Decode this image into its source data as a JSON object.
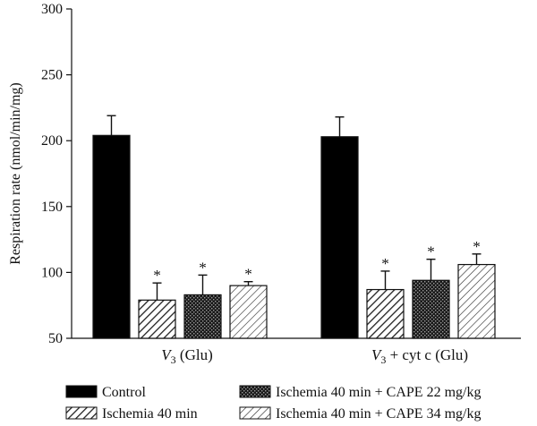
{
  "chart_data": {
    "type": "bar",
    "title": "",
    "xlabel": "",
    "ylabel": "Respiration rate (nmol/min/mg)",
    "ylim": [
      50,
      300
    ],
    "yticks": [
      "50",
      "100",
      "150",
      "200",
      "250",
      "300"
    ],
    "grid": false,
    "legend_position": "bottom",
    "groups": [
      {
        "label_main": "V",
        "label_sub": "3",
        "label_rest": " (Glu)"
      },
      {
        "label_main": "V",
        "label_sub": "3",
        "label_rest": " + cyt c (Glu)"
      }
    ],
    "significance_marker": "*",
    "series": [
      {
        "name": "Control",
        "pattern": "solid",
        "values": [
          204,
          203
        ],
        "errors": [
          15,
          15
        ],
        "significant": [
          false,
          false
        ]
      },
      {
        "name": "Ischemia 40 min",
        "pattern": "diagonal",
        "values": [
          79,
          87
        ],
        "errors": [
          13,
          14
        ],
        "significant": [
          true,
          true
        ]
      },
      {
        "name": "Ischemia 40 min + CAPE 22 mg/kg",
        "pattern": "crosshatch",
        "values": [
          83,
          94
        ],
        "errors": [
          15,
          16
        ],
        "significant": [
          true,
          true
        ]
      },
      {
        "name": "Ischemia 40 min + CAPE 34 mg/kg",
        "pattern": "diagonal-light",
        "values": [
          90,
          106
        ],
        "errors": [
          3,
          8
        ],
        "significant": [
          true,
          true
        ]
      }
    ]
  }
}
